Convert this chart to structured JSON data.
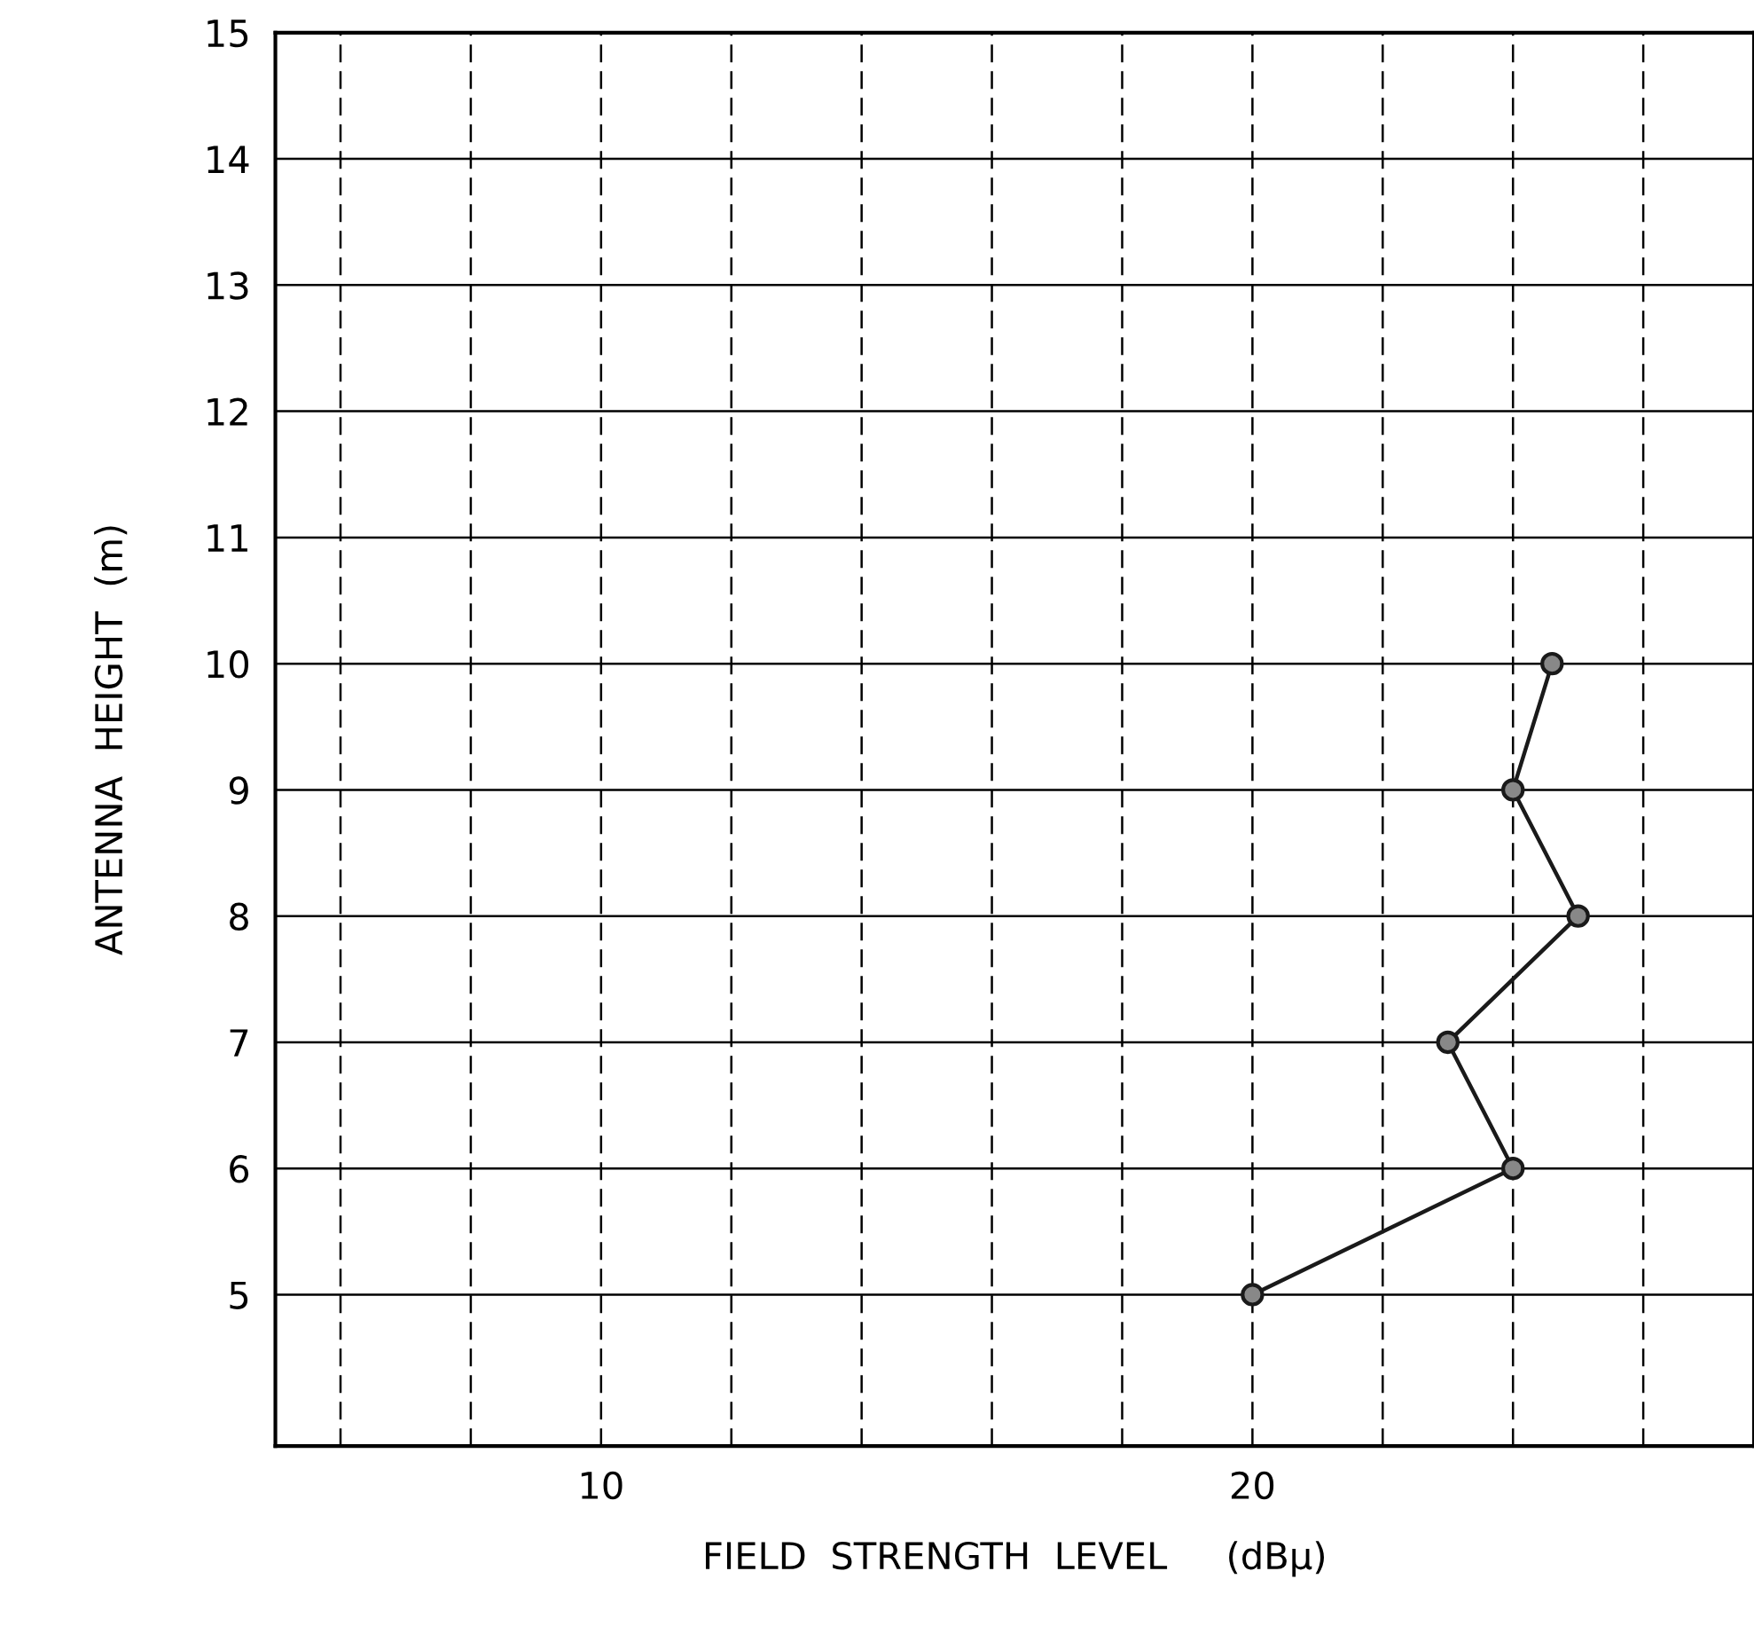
{
  "chart_data": {
    "type": "line",
    "xlabel": "FIELD  STRENGTH  LEVEL     (dBμ)",
    "ylabel": "ANTENNA  HEIGHT  (m)",
    "x": [
      20,
      24,
      23,
      25,
      24,
      24.6
    ],
    "series": [
      {
        "color": "#1a1a1a",
        "values": [
          5,
          6,
          7,
          8,
          9,
          10
        ]
      }
    ],
    "marker": "circle",
    "line_style": "solid",
    "grid": true,
    "xlim": [
      5,
      27.7
    ],
    "ylim": [
      3.8,
      15
    ],
    "xticks": [
      {
        "value": 6,
        "label": null
      },
      {
        "value": 8,
        "label": null
      },
      10,
      {
        "value": 12,
        "label": null
      },
      {
        "value": 14,
        "label": null
      },
      {
        "value": 16,
        "label": null
      },
      {
        "value": 18,
        "label": null
      },
      20,
      {
        "value": 22,
        "label": null
      },
      {
        "value": 24,
        "label": null
      },
      {
        "value": 26,
        "label": null
      }
    ],
    "yticks": [
      5,
      6,
      7,
      8,
      9,
      10,
      11,
      12,
      13,
      14,
      15
    ]
  }
}
